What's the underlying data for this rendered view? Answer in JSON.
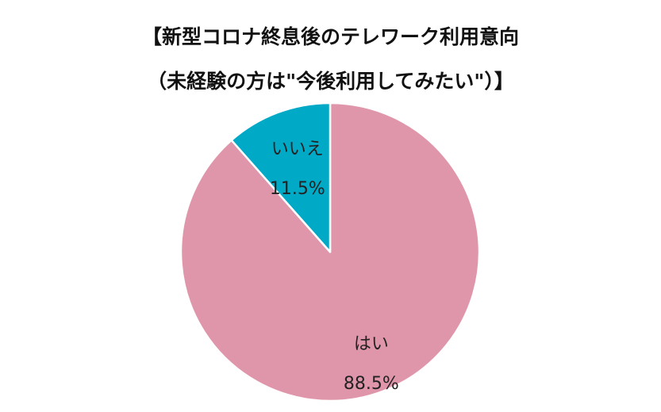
{
  "chart_data": {
    "type": "pie",
    "title": "【新型コロナ終息後のテレワーク利用意向",
    "subtitle": "（未経験の方は\"今後利用してみたい\"）】",
    "slices": [
      {
        "label": "はい",
        "value": 88.5,
        "display": "88.5%",
        "color": "#e096aa"
      },
      {
        "label": "いいえ",
        "value": 11.5,
        "display": "11.5%",
        "color": "#00a9c6"
      }
    ],
    "start_angle_deg": 0,
    "direction": "clockwise"
  }
}
